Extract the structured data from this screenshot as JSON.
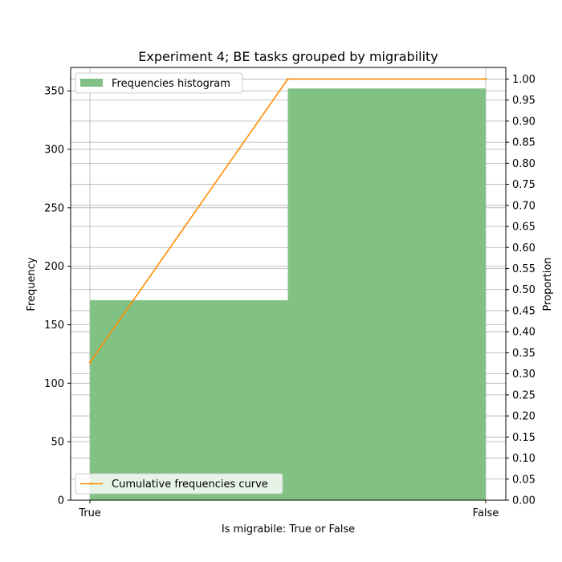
{
  "chart_data": {
    "type": "bar",
    "title": "Experiment 4; BE tasks grouped by migrability",
    "xlabel": "Is migrabile: True or False",
    "ylabel": "Frequency",
    "y2label": "Proportion",
    "categories": [
      "True",
      "False"
    ],
    "ylim": [
      0,
      370
    ],
    "y2lim": [
      0,
      1.0275
    ],
    "yticks": [
      0,
      50,
      100,
      150,
      200,
      250,
      300,
      350
    ],
    "y2ticks": [
      "0.00",
      "0.05",
      "0.10",
      "0.15",
      "0.20",
      "0.25",
      "0.30",
      "0.35",
      "0.40",
      "0.45",
      "0.50",
      "0.55",
      "0.60",
      "0.65",
      "0.70",
      "0.75",
      "0.80",
      "0.85",
      "0.90",
      "0.95",
      "1.00"
    ],
    "grid": true,
    "series": [
      {
        "name": "Frequencies histogram",
        "type": "bar",
        "color": "#81c184",
        "bins": [
          {
            "from": "True",
            "to": "midpoint",
            "value": 171
          },
          {
            "from": "midpoint",
            "to": "False",
            "value": 352
          }
        ]
      },
      {
        "name": "Cumulative frequencies curve",
        "type": "line",
        "axis": "right",
        "color": "#ff8c00",
        "points": [
          {
            "x": "True",
            "y": 0.327
          },
          {
            "x": "midpoint",
            "y": 1.0
          },
          {
            "x": "False",
            "y": 1.0
          }
        ]
      }
    ],
    "legends": [
      {
        "series": "Frequencies histogram",
        "placement": "upper-left"
      },
      {
        "series": "Cumulative frequencies curve",
        "placement": "lower-left"
      }
    ]
  }
}
